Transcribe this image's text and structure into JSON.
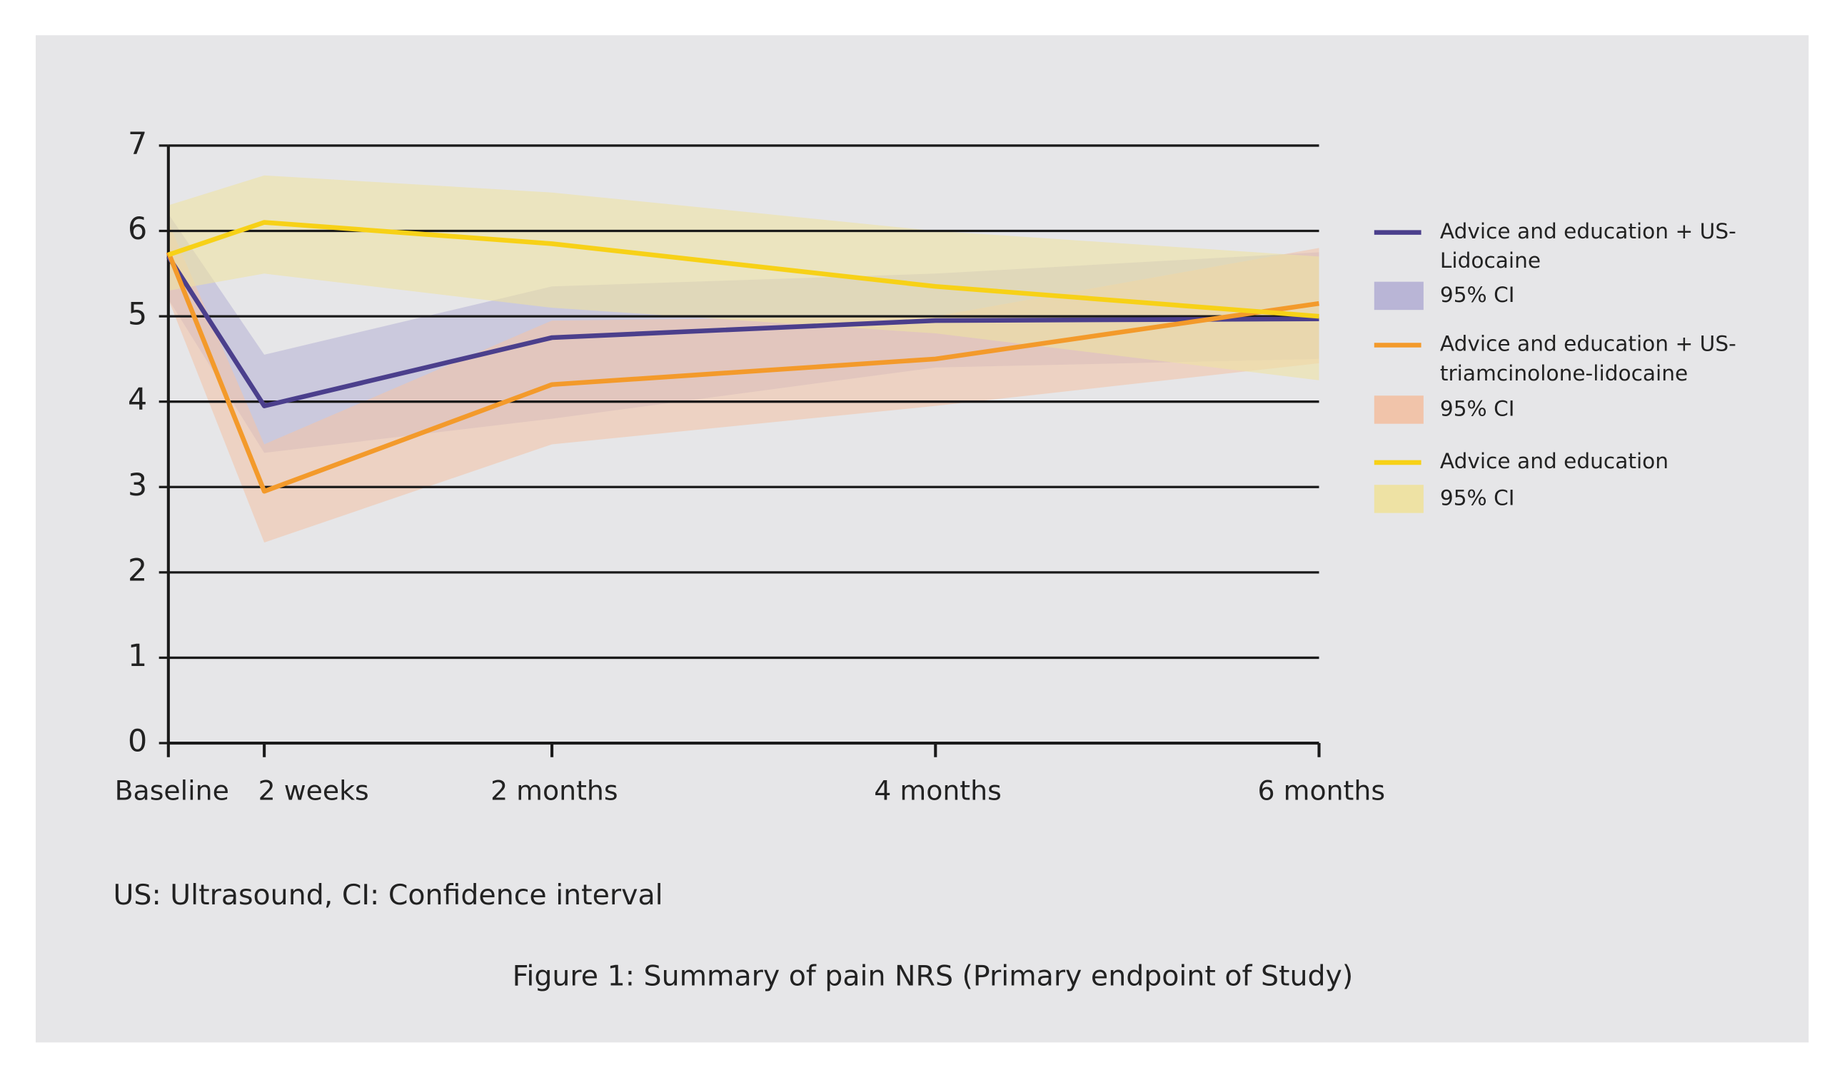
{
  "chart_data": {
    "type": "line",
    "note": "US: Ultrasound, CI: Confidence interval",
    "caption": "Figure 1: Summary of pain NRS (Primary endpoint of Study)",
    "x": [
      0,
      0.5,
      2,
      4,
      6
    ],
    "xlim": [
      0,
      6
    ],
    "xticks": [
      {
        "value": 0,
        "label": "Baseline"
      },
      {
        "value": 0.5,
        "label": "2 weeks"
      },
      {
        "value": 2,
        "label": "2 months"
      },
      {
        "value": 4,
        "label": "4 months"
      },
      {
        "value": 6,
        "label": "6 months"
      }
    ],
    "ylim": [
      0,
      7
    ],
    "yticks": [
      0,
      1,
      2,
      3,
      4,
      5,
      6,
      7
    ],
    "grid": true,
    "legend": "right",
    "series": [
      {
        "name": "Advice and education + US-Lidocaine",
        "color": "#4b3f8c",
        "band_color": "#b9b5d6",
        "ci_label": "95% CI",
        "values": [
          5.7,
          3.95,
          4.75,
          4.95,
          4.97
        ],
        "lower": [
          5.2,
          3.4,
          3.8,
          4.4,
          4.5
        ],
        "upper": [
          6.2,
          4.55,
          5.35,
          5.5,
          5.75
        ]
      },
      {
        "name": "Advice and education + US-triamcinolone-lidocaine",
        "color": "#f39a2b",
        "band_color": "#f1c4aa",
        "ci_label": "95% CI",
        "values": [
          5.75,
          2.95,
          4.2,
          4.5,
          5.15
        ],
        "lower": [
          5.2,
          2.35,
          3.5,
          3.95,
          4.45
        ],
        "upper": [
          6.1,
          3.5,
          4.95,
          5.0,
          5.8
        ]
      },
      {
        "name": "Advice and education",
        "color": "#f7d117",
        "band_color": "#eee2a4",
        "ci_label": "95% CI",
        "values": [
          5.72,
          6.1,
          5.85,
          5.35,
          5.0
        ],
        "lower": [
          5.3,
          5.5,
          5.1,
          4.8,
          4.25
        ],
        "upper": [
          6.3,
          6.65,
          6.45,
          6.0,
          5.7
        ]
      }
    ]
  }
}
